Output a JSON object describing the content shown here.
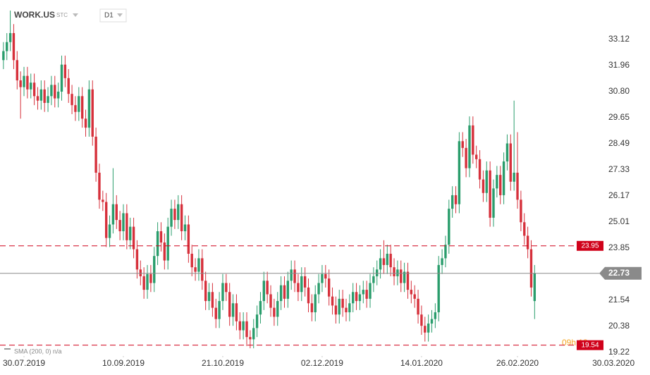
{
  "header": {
    "symbol": "WORK.US",
    "exchange": "STC",
    "interval": "D1"
  },
  "indicator": "SMA (200, 0) n/a",
  "countdown": "09h 18m",
  "chart_data": {
    "type": "candlestick",
    "up_color": "#2a9d6c",
    "down_color": "#d6303b",
    "x": [
      0,
      1,
      2,
      3,
      4,
      5,
      6,
      7,
      8,
      9,
      10,
      11,
      12,
      13,
      14,
      15,
      16,
      17,
      18,
      19,
      20,
      21,
      22,
      23,
      24,
      25,
      26,
      27,
      28,
      29,
      30,
      31,
      32,
      33,
      34,
      35,
      36,
      37,
      38,
      39,
      40,
      41,
      42,
      43,
      44,
      45,
      46,
      47,
      48,
      49,
      50,
      51,
      52,
      53,
      54,
      55,
      56,
      57,
      58,
      59,
      60,
      61,
      62,
      63,
      64,
      65,
      66,
      67,
      68,
      69,
      70,
      71,
      72,
      73,
      74,
      75,
      76,
      77,
      78,
      79,
      80,
      81,
      82,
      83,
      84,
      85,
      86,
      87,
      88,
      89,
      90,
      91,
      92,
      93,
      94,
      95,
      96,
      97,
      98,
      99,
      100,
      101,
      102,
      103,
      104,
      105,
      106,
      107,
      108,
      109,
      110,
      111,
      112,
      113,
      114,
      115,
      116,
      117,
      118,
      119,
      120,
      121,
      122,
      123,
      124,
      125,
      126,
      127,
      128,
      129,
      130,
      131,
      132,
      133,
      134,
      135,
      136,
      137,
      138,
      139,
      140,
      141,
      142,
      143,
      144,
      145,
      146,
      147,
      148,
      149,
      150,
      151,
      152,
      153,
      154,
      155
    ],
    "open": [
      32.2,
      32.6,
      33.0,
      33.4,
      32.2,
      31.3,
      31.0,
      31.5,
      30.9,
      31.2,
      30.6,
      30.4,
      30.9,
      30.3,
      30.6,
      31.1,
      30.5,
      30.8,
      32.0,
      31.4,
      30.7,
      30.2,
      29.9,
      30.6,
      29.6,
      29.2,
      30.9,
      28.8,
      27.2,
      26.0,
      25.9,
      24.3,
      24.9,
      25.8,
      25.1,
      24.6,
      25.4,
      24.2,
      24.8,
      23.8,
      22.9,
      22.6,
      22.0,
      22.7,
      22.3,
      23.5,
      24.6,
      24.1,
      23.3,
      24.8,
      25.6,
      25.1,
      25.8,
      24.6,
      24.9,
      23.6,
      23.0,
      22.8,
      23.4,
      22.4,
      21.5,
      21.9,
      21.2,
      20.7,
      21.5,
      22.3,
      21.9,
      20.8,
      21.4,
      20.6,
      20.2,
      20.6,
      19.9,
      19.8,
      20.3,
      20.9,
      21.5,
      22.4,
      21.8,
      21.2,
      20.8,
      21.5,
      22.2,
      21.6,
      22.4,
      22.9,
      22.3,
      21.9,
      22.6,
      22.1,
      21.4,
      21.0,
      21.8,
      22.3,
      22.7,
      22.5,
      21.7,
      21.3,
      20.9,
      21.6,
      21.2,
      21.0,
      21.4,
      21.9,
      21.5,
      21.8,
      22.0,
      21.6,
      22.3,
      22.6,
      22.9,
      23.4,
      23.1,
      23.6,
      23.0,
      22.6,
      22.9,
      22.3,
      22.8,
      22.0,
      21.8,
      21.6,
      20.9,
      20.4,
      20.1,
      20.5,
      20.7,
      21.0,
      23.1,
      23.4,
      24.0,
      25.6,
      26.2,
      25.8,
      28.6,
      28.3,
      27.4,
      29.3,
      28.0,
      27.8,
      26.9,
      26.3,
      27.3,
      25.2,
      26.5,
      27.1,
      26.2,
      27.7,
      28.5,
      26.8,
      27.2,
      26.0,
      25.0,
      24.4,
      23.8,
      21.5
    ],
    "high": [
      33.0,
      33.4,
      34.4,
      33.8,
      32.6,
      31.7,
      31.9,
      31.9,
      31.6,
      31.6,
      31.0,
      31.3,
      31.3,
      31.0,
      31.5,
      31.5,
      31.2,
      32.4,
      32.4,
      31.8,
      31.1,
      30.6,
      31.0,
      31.0,
      30.0,
      31.3,
      31.3,
      29.2,
      27.6,
      26.4,
      26.3,
      25.3,
      27.4,
      26.2,
      25.5,
      25.8,
      25.8,
      25.2,
      25.2,
      24.2,
      23.3,
      23.0,
      23.1,
      23.1,
      23.9,
      25.0,
      25.0,
      24.5,
      25.2,
      26.0,
      26.0,
      26.2,
      26.2,
      25.3,
      25.3,
      24.0,
      23.4,
      23.8,
      23.8,
      22.8,
      22.3,
      22.3,
      21.6,
      21.9,
      22.7,
      22.7,
      22.3,
      21.8,
      21.8,
      21.0,
      21.0,
      21.0,
      20.2,
      20.7,
      21.3,
      21.9,
      22.8,
      22.8,
      22.2,
      21.6,
      21.9,
      22.6,
      22.6,
      22.8,
      23.3,
      23.3,
      22.7,
      23.0,
      23.0,
      22.5,
      21.8,
      22.2,
      22.7,
      23.1,
      23.1,
      22.9,
      22.1,
      21.7,
      22.0,
      22.0,
      21.6,
      21.8,
      22.3,
      22.3,
      22.2,
      22.4,
      22.4,
      22.7,
      23.0,
      23.3,
      23.8,
      24.2,
      24.0,
      24.0,
      23.4,
      23.3,
      23.3,
      23.2,
      23.2,
      22.4,
      22.2,
      22.0,
      21.3,
      20.8,
      20.9,
      21.1,
      21.4,
      23.5,
      23.8,
      24.4,
      26.0,
      26.6,
      26.6,
      29.0,
      29.0,
      28.7,
      29.7,
      29.7,
      28.4,
      28.2,
      27.3,
      27.7,
      27.7,
      26.9,
      27.5,
      27.5,
      28.1,
      28.9,
      28.9,
      30.4,
      29.0,
      26.4,
      25.4,
      24.8,
      24.2,
      23.1
    ],
    "low": [
      31.8,
      32.2,
      32.6,
      31.8,
      30.9,
      29.6,
      30.6,
      30.5,
      30.5,
      30.2,
      30.0,
      30.0,
      29.9,
      29.9,
      30.2,
      30.1,
      30.1,
      30.4,
      31.0,
      30.3,
      29.8,
      29.5,
      29.5,
      29.2,
      28.8,
      28.8,
      28.4,
      26.8,
      25.6,
      25.5,
      23.9,
      23.9,
      24.5,
      24.7,
      24.2,
      24.2,
      23.8,
      23.8,
      23.4,
      22.5,
      22.2,
      21.6,
      21.6,
      21.9,
      21.9,
      23.1,
      23.7,
      22.9,
      22.9,
      24.4,
      24.7,
      24.7,
      24.2,
      24.2,
      23.2,
      22.6,
      22.4,
      22.4,
      22.0,
      21.1,
      21.1,
      20.8,
      20.3,
      20.3,
      21.1,
      21.5,
      20.4,
      20.4,
      20.2,
      19.8,
      19.8,
      19.5,
      19.4,
      19.4,
      19.9,
      20.5,
      21.1,
      21.4,
      20.8,
      20.4,
      20.4,
      21.1,
      21.2,
      21.2,
      22.0,
      21.9,
      21.5,
      21.5,
      21.7,
      21.0,
      20.6,
      20.6,
      21.4,
      21.9,
      22.1,
      21.3,
      20.9,
      20.5,
      20.5,
      20.8,
      20.6,
      20.6,
      21.0,
      21.1,
      21.1,
      21.4,
      21.2,
      21.2,
      21.9,
      22.2,
      22.5,
      22.7,
      22.7,
      22.6,
      22.2,
      22.2,
      21.9,
      21.9,
      21.6,
      21.4,
      21.2,
      20.5,
      20.0,
      19.7,
      19.7,
      20.1,
      20.3,
      20.6,
      22.7,
      23.0,
      23.6,
      25.2,
      25.4,
      25.4,
      27.9,
      27.0,
      27.0,
      27.6,
      27.4,
      26.5,
      25.9,
      25.9,
      24.8,
      24.8,
      26.1,
      25.8,
      25.8,
      27.3,
      26.4,
      26.4,
      25.6,
      24.6,
      24.0,
      23.4,
      21.7,
      20.7
    ],
    "close": [
      32.6,
      33.0,
      33.4,
      32.2,
      31.3,
      31.0,
      31.5,
      30.9,
      31.2,
      30.6,
      30.4,
      30.9,
      30.3,
      30.6,
      31.1,
      30.5,
      30.8,
      32.0,
      31.4,
      30.7,
      30.2,
      29.9,
      30.6,
      29.6,
      29.2,
      30.9,
      28.8,
      27.2,
      26.0,
      25.9,
      24.3,
      24.9,
      25.8,
      25.1,
      24.6,
      25.4,
      24.2,
      24.8,
      23.8,
      22.9,
      22.6,
      22.0,
      22.7,
      22.3,
      23.5,
      24.6,
      24.1,
      23.3,
      24.8,
      25.6,
      25.1,
      25.8,
      24.6,
      24.9,
      23.6,
      23.0,
      22.8,
      23.4,
      22.4,
      21.5,
      21.9,
      21.2,
      20.7,
      21.5,
      22.3,
      21.9,
      20.8,
      21.4,
      20.6,
      20.2,
      20.6,
      19.9,
      19.8,
      20.3,
      20.9,
      21.5,
      22.4,
      21.8,
      21.2,
      20.8,
      21.5,
      22.2,
      21.6,
      22.4,
      22.9,
      22.3,
      21.9,
      22.6,
      22.1,
      21.4,
      21.0,
      21.8,
      22.3,
      22.7,
      22.5,
      21.7,
      21.3,
      20.9,
      21.6,
      21.2,
      21.0,
      21.4,
      21.9,
      21.5,
      21.8,
      22.0,
      21.6,
      22.3,
      22.6,
      22.9,
      23.4,
      23.1,
      23.6,
      23.0,
      22.6,
      22.9,
      22.3,
      22.8,
      22.0,
      21.8,
      21.6,
      20.9,
      20.4,
      20.1,
      20.5,
      20.7,
      21.0,
      23.1,
      23.4,
      24.0,
      25.6,
      26.2,
      25.8,
      28.6,
      28.3,
      27.4,
      29.3,
      28.0,
      27.8,
      26.9,
      26.3,
      27.3,
      25.2,
      26.5,
      27.1,
      26.2,
      27.7,
      28.5,
      26.8,
      27.2,
      26.0,
      25.0,
      24.4,
      23.8,
      22.1,
      22.73
    ],
    "xlim": [
      -1,
      179
    ],
    "xticks": [
      {
        "value": 6,
        "label": "30.07.2019"
      },
      {
        "value": 35,
        "label": "10.09.2019"
      },
      {
        "value": 64,
        "label": "21.10.2019"
      },
      {
        "value": 93,
        "label": "02.12.2019"
      },
      {
        "value": 122,
        "label": "14.01.2020"
      },
      {
        "value": 150,
        "label": "26.02.2020"
      },
      {
        "value": 178,
        "label": "30.03.2020"
      }
    ],
    "ylim": [
      19.06,
      34.87
    ],
    "yticks": [
      33.12,
      31.96,
      {
        "value": 30.8,
        "label": "30.80"
      },
      29.65,
      28.49,
      27.33,
      26.17,
      25.01,
      23.85,
      21.54,
      20.38,
      19.22
    ],
    "levels": [
      {
        "value": 23.95,
        "color": "#d0021b"
      },
      {
        "value": 19.54,
        "color": "#d0021b"
      }
    ],
    "last_price": 22.73,
    "last_price_color": "#8a8a8a"
  }
}
